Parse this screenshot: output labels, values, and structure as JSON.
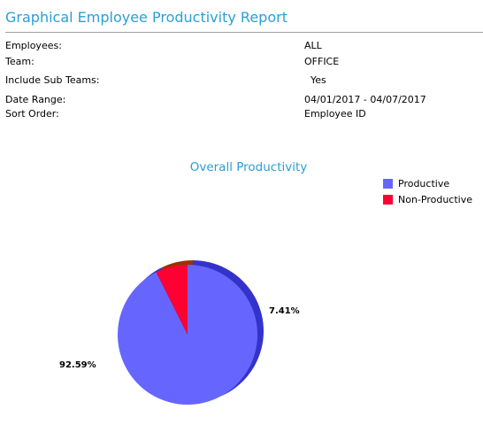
{
  "report": {
    "title": "Graphical Employee Productivity Report"
  },
  "params": [
    {
      "label": "Employees:",
      "value": "ALL"
    },
    {
      "label": "Team:",
      "value": "OFFICE"
    },
    {
      "label": "Include Sub Teams:",
      "value": "Yes"
    },
    {
      "label": "Date Range:",
      "value": "04/01/2017 - 04/07/2017"
    },
    {
      "label": "Sort Order:",
      "value": "Employee ID"
    }
  ],
  "chart_data": {
    "type": "pie",
    "title": "Overall Productivity",
    "legend_position": "top-right",
    "slices": [
      {
        "name": "Productive",
        "value": 92.59,
        "label": "92.59%",
        "color": "#6666ff",
        "side_color": "#3333cc"
      },
      {
        "name": "Non-Productive",
        "value": 7.41,
        "label": "7.41%",
        "color": "#ff0033",
        "side_color": "#993300"
      }
    ]
  }
}
